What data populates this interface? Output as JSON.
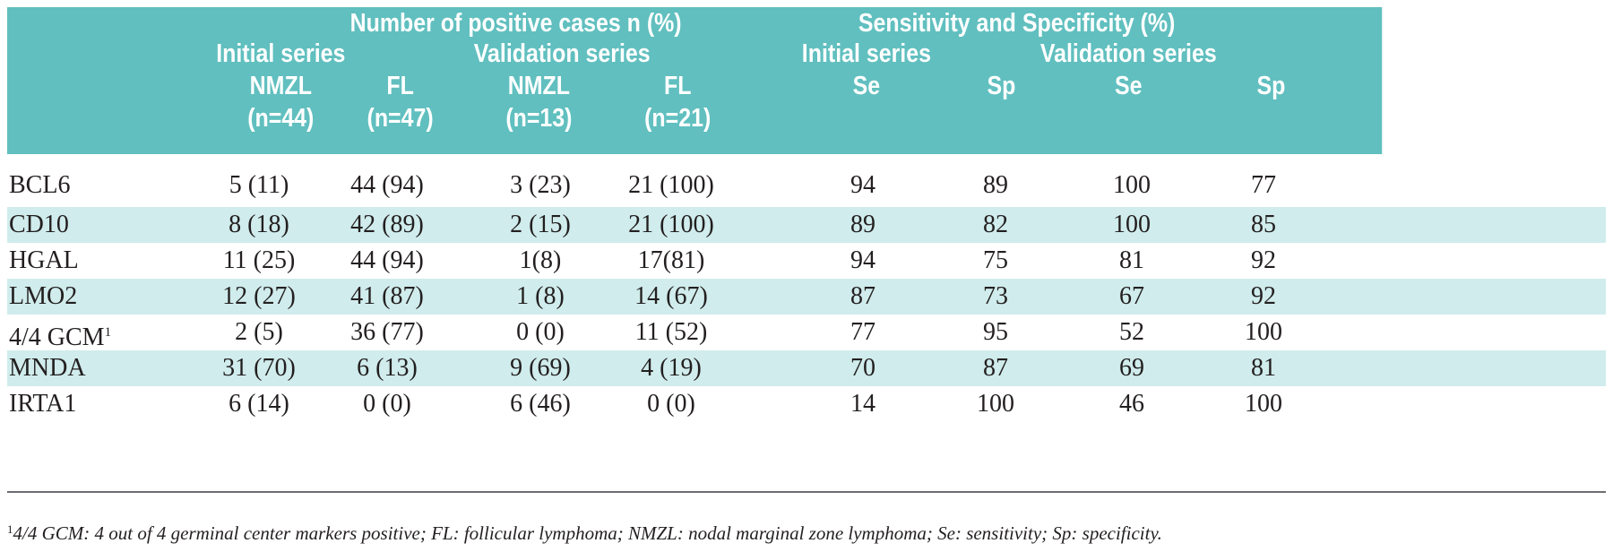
{
  "table": {
    "header": {
      "group_positive": "Number of positive cases n (%)",
      "group_sens": "Sensitivity and Specificity (%)",
      "initial_series_1": "Initial series",
      "validation_series_1": "Validation series",
      "initial_series_2": "Initial series",
      "validation_series_2": "Validation series",
      "nmzl_1": "NMZL",
      "n44": "(n=44)",
      "fl_1": "FL",
      "n47": "(n=47)",
      "nmzl_2": "NMZL",
      "n13": "(n=13)",
      "fl_2": "FL",
      "n21": "(n=21)",
      "se_1": "Se",
      "sp_1": "Sp",
      "se_2": "Se",
      "sp_2": "Sp"
    },
    "rows": [
      {
        "marker": "BCL6",
        "sup": "",
        "c1": "5 (11)",
        "c2": "44 (94)",
        "c3": "3 (23)",
        "c4": "21 (100)",
        "c5": "94",
        "c6": "89",
        "c7": "100",
        "c8": "77"
      },
      {
        "marker": "CD10",
        "sup": "",
        "c1": "8 (18)",
        "c2": "42 (89)",
        "c3": "2 (15)",
        "c4": "21 (100)",
        "c5": "89",
        "c6": "82",
        "c7": "100",
        "c8": "85"
      },
      {
        "marker": "HGAL",
        "sup": "",
        "c1": "11 (25)",
        "c2": "44 (94)",
        "c3": "1(8)",
        "c4": "17(81)",
        "c5": "94",
        "c6": "75",
        "c7": "81",
        "c8": "92"
      },
      {
        "marker": "LMO2",
        "sup": "",
        "c1": "12 (27)",
        "c2": "41 (87)",
        "c3": "1 (8)",
        "c4": "14 (67)",
        "c5": "87",
        "c6": "73",
        "c7": "67",
        "c8": "92"
      },
      {
        "marker": "4/4 GCM",
        "sup": "1",
        "c1": "2 (5)",
        "c2": "36 (77)",
        "c3": "0 (0)",
        "c4": "11 (52)",
        "c5": "77",
        "c6": "95",
        "c7": "52",
        "c8": "100"
      },
      {
        "marker": "MNDA",
        "sup": "",
        "c1": "31 (70)",
        "c2": "6 (13)",
        "c3": "9 (69)",
        "c4": "4 (19)",
        "c5": "70",
        "c6": "87",
        "c7": "69",
        "c8": "81"
      },
      {
        "marker": "IRTA1",
        "sup": "",
        "c1": "6 (14)",
        "c2": "0 (0)",
        "c3": "6 (46)",
        "c4": "0 (0)",
        "c5": "14",
        "c6": "100",
        "c7": "46",
        "c8": "100"
      }
    ],
    "footnote_sup": "1",
    "footnote": "4/4 GCM: 4 out of 4 germinal center markers positive; FL: follicular lymphoma; NMZL: nodal marginal zone lymphoma; Se: sensitivity; Sp: specificity."
  }
}
